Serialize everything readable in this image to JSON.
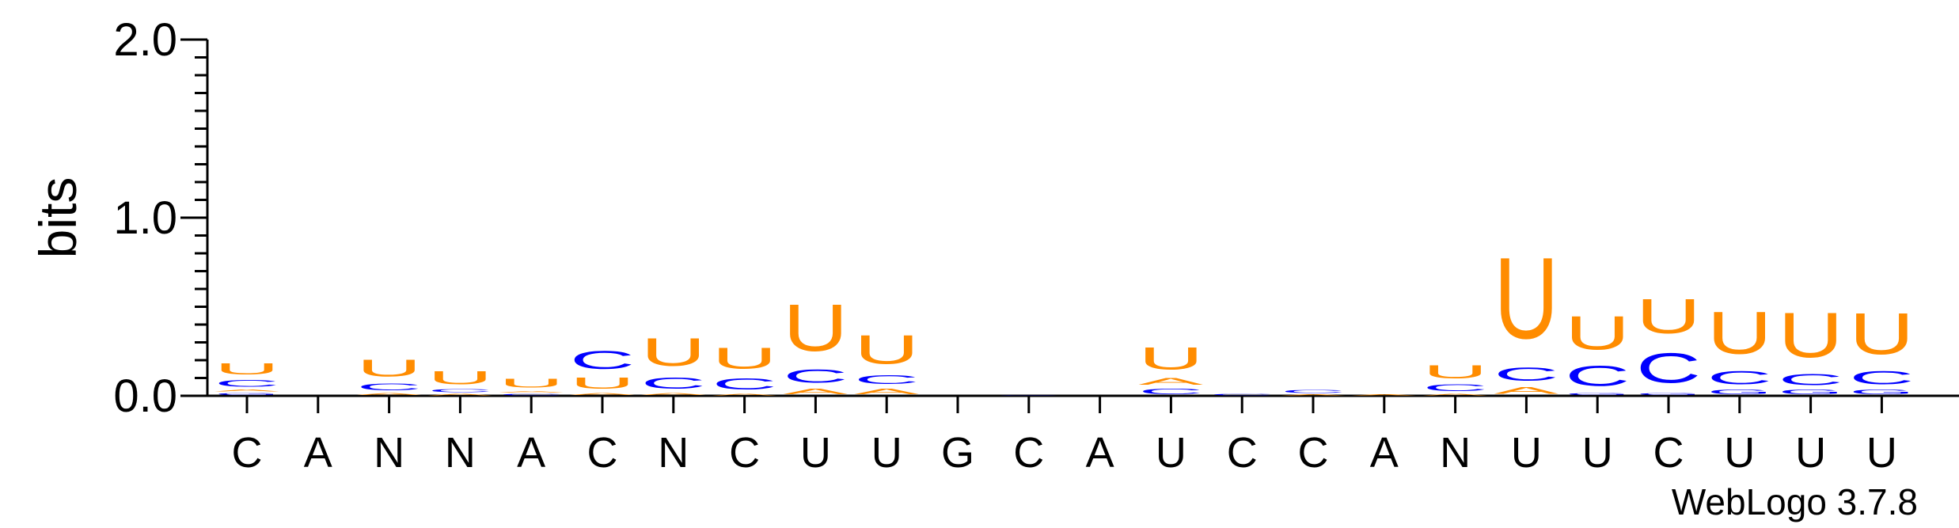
{
  "chart_data": {
    "type": "sequence-logo",
    "ylabel": "bits",
    "ylim": [
      0,
      2.0
    ],
    "yticks": [
      {
        "value": 0.0,
        "label": "0.0"
      },
      {
        "value": 1.0,
        "label": "1.0"
      },
      {
        "value": 2.0,
        "label": "2.0"
      }
    ],
    "categories": [
      "C",
      "A",
      "N",
      "N",
      "A",
      "C",
      "N",
      "C",
      "U",
      "U",
      "G",
      "C",
      "A",
      "U",
      "C",
      "C",
      "A",
      "N",
      "U",
      "U",
      "C",
      "U",
      "U",
      "U"
    ],
    "colors": {
      "U": "#ff8c00",
      "C": "#0000ff",
      "A": "#ff8c00",
      "G": "#0000ff"
    },
    "positions": [
      {
        "stack": [
          {
            "letter": "G",
            "bits": 0.02
          },
          {
            "letter": "A",
            "bits": 0.02
          },
          {
            "letter": "C",
            "bits": 0.06
          },
          {
            "letter": "U",
            "bits": 0.1
          }
        ]
      },
      {
        "stack": []
      },
      {
        "stack": [
          {
            "letter": "A",
            "bits": 0.02
          },
          {
            "letter": "C",
            "bits": 0.06
          },
          {
            "letter": "U",
            "bits": 0.15
          }
        ]
      },
      {
        "stack": [
          {
            "letter": "A",
            "bits": 0.015
          },
          {
            "letter": "C",
            "bits": 0.025
          },
          {
            "letter": "U",
            "bits": 0.12
          }
        ]
      },
      {
        "stack": [
          {
            "letter": "C",
            "bits": 0.015
          },
          {
            "letter": "A",
            "bits": 0.015
          },
          {
            "letter": "U",
            "bits": 0.08
          }
        ]
      },
      {
        "stack": [
          {
            "letter": "A",
            "bits": 0.02
          },
          {
            "letter": "U",
            "bits": 0.1
          },
          {
            "letter": "C",
            "bits": 0.16
          }
        ]
      },
      {
        "stack": [
          {
            "letter": "A",
            "bits": 0.02
          },
          {
            "letter": "C",
            "bits": 0.1
          },
          {
            "letter": "U",
            "bits": 0.25
          }
        ]
      },
      {
        "stack": [
          {
            "letter": "A",
            "bits": 0.015
          },
          {
            "letter": "C",
            "bits": 0.1
          },
          {
            "letter": "U",
            "bits": 0.19
          }
        ]
      },
      {
        "stack": [
          {
            "letter": "A",
            "bits": 0.05
          },
          {
            "letter": "C",
            "bits": 0.12
          },
          {
            "letter": "U",
            "bits": 0.42
          }
        ]
      },
      {
        "stack": [
          {
            "letter": "A",
            "bits": 0.05
          },
          {
            "letter": "C",
            "bits": 0.08
          },
          {
            "letter": "U",
            "bits": 0.26
          }
        ]
      },
      {
        "stack": []
      },
      {
        "stack": [
          {
            "letter": "C",
            "bits": 0.005
          }
        ]
      },
      {
        "stack": []
      },
      {
        "stack": [
          {
            "letter": "C",
            "bits": 0.05
          },
          {
            "letter": "A",
            "bits": 0.06
          },
          {
            "letter": "U",
            "bits": 0.2
          }
        ]
      },
      {
        "stack": [
          {
            "letter": "C",
            "bits": 0.015
          }
        ]
      },
      {
        "stack": [
          {
            "letter": "A",
            "bits": 0.01
          },
          {
            "letter": "C",
            "bits": 0.025
          }
        ]
      },
      {
        "stack": [
          {
            "letter": "A",
            "bits": 0.008
          }
        ]
      },
      {
        "stack": [
          {
            "letter": "A",
            "bits": 0.015
          },
          {
            "letter": "C",
            "bits": 0.06
          },
          {
            "letter": "U",
            "bits": 0.12
          }
        ]
      },
      {
        "stack": [
          {
            "letter": "A",
            "bits": 0.06
          },
          {
            "letter": "C",
            "bits": 0.12
          },
          {
            "letter": "U",
            "bits": 0.73
          }
        ]
      },
      {
        "stack": [
          {
            "letter": "G",
            "bits": 0.02
          },
          {
            "letter": "C",
            "bits": 0.18
          },
          {
            "letter": "U",
            "bits": 0.3
          }
        ]
      },
      {
        "stack": [
          {
            "letter": "G",
            "bits": 0.02
          },
          {
            "letter": "C",
            "bits": 0.27
          },
          {
            "letter": "U",
            "bits": 0.31
          }
        ]
      },
      {
        "stack": [
          {
            "letter": "G",
            "bits": 0.04
          },
          {
            "letter": "C",
            "bits": 0.12
          },
          {
            "letter": "U",
            "bits": 0.38
          }
        ]
      },
      {
        "stack": [
          {
            "letter": "G",
            "bits": 0.04
          },
          {
            "letter": "C",
            "bits": 0.1
          },
          {
            "letter": "U",
            "bits": 0.4
          }
        ]
      },
      {
        "stack": [
          {
            "letter": "G",
            "bits": 0.04
          },
          {
            "letter": "C",
            "bits": 0.12
          },
          {
            "letter": "U",
            "bits": 0.37
          }
        ]
      }
    ],
    "credit": "WebLogo 3.7.8"
  }
}
